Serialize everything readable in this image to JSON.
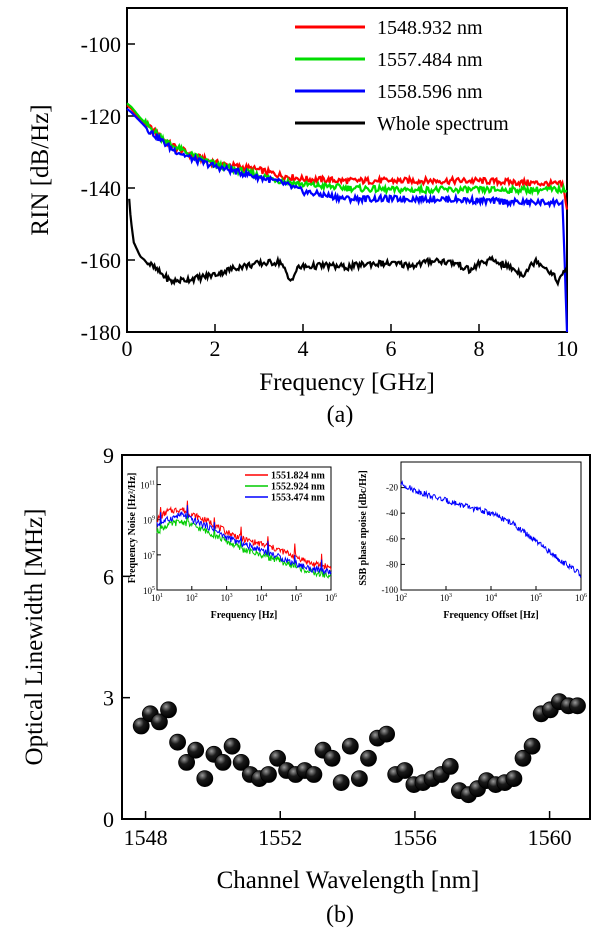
{
  "chart_data": [
    {
      "type": "line",
      "panel_label": "(a)",
      "xlabel": "Frequency [GHz]",
      "ylabel": "RIN [dB/Hz]",
      "xlim": [
        0,
        10
      ],
      "ylim": [
        -180,
        -90
      ],
      "x_ticks": [
        0,
        2,
        4,
        6,
        8,
        10
      ],
      "y_ticks": [
        -180,
        -160,
        -140,
        -120,
        -100
      ],
      "legend_position": "top-right",
      "series": [
        {
          "name": "1548.932 nm",
          "color": "#ff0000",
          "x": [
            0,
            0.1,
            0.3,
            0.5,
            0.8,
            1.0,
            1.5,
            2,
            2.5,
            3,
            3.5,
            4,
            5,
            6,
            7,
            8,
            9,
            9.9,
            10
          ],
          "y": [
            -117,
            -118,
            -121,
            -123,
            -126,
            -128,
            -131,
            -133,
            -134,
            -135,
            -136.5,
            -137.5,
            -138,
            -138,
            -138,
            -138,
            -138.5,
            -139,
            -146
          ]
        },
        {
          "name": "1557.484 nm",
          "color": "#00dd00",
          "x": [
            0,
            0.1,
            0.3,
            0.5,
            0.8,
            1.0,
            1.5,
            2,
            2.5,
            3,
            3.5,
            4,
            5,
            6,
            7,
            8,
            9,
            9.9,
            10
          ],
          "y": [
            -116.5,
            -117.5,
            -120.5,
            -123,
            -126,
            -128,
            -131,
            -133.5,
            -135,
            -136.5,
            -138,
            -139,
            -140,
            -140.5,
            -140.5,
            -140.5,
            -140.5,
            -140.5,
            -141
          ]
        },
        {
          "name": "1558.596 nm",
          "color": "#0000ff",
          "x": [
            0,
            0.1,
            0.3,
            0.5,
            0.8,
            1.0,
            1.5,
            2,
            2.5,
            3,
            3.5,
            4,
            5,
            6,
            7,
            8,
            9,
            9.9,
            10
          ],
          "y": [
            -118,
            -119,
            -121.5,
            -124,
            -127,
            -129,
            -132,
            -134,
            -135.5,
            -137,
            -138.5,
            -141,
            -143,
            -143,
            -143,
            -143.5,
            -144,
            -144,
            -180
          ]
        },
        {
          "name": "Whole spectrum",
          "color": "#000000",
          "x": [
            0.05,
            0.08,
            0.15,
            0.3,
            0.5,
            0.8,
            1.0,
            1.3,
            1.6,
            2.0,
            2.5,
            3.0,
            3.5,
            3.7,
            3.9,
            4.5,
            5,
            5.5,
            6,
            6.5,
            7,
            7.5,
            7.8,
            8,
            8.3,
            8.7,
            9,
            9.3,
            9.6,
            9.8,
            10
          ],
          "y": [
            -143,
            -148,
            -155,
            -159,
            -161,
            -164,
            -166,
            -165.5,
            -165,
            -164,
            -162,
            -161,
            -160.5,
            -166,
            -162,
            -161.5,
            -162,
            -161,
            -161,
            -161.5,
            -160,
            -161,
            -163,
            -161,
            -160,
            -162,
            -164,
            -160,
            -163,
            -166,
            -162
          ]
        }
      ]
    },
    {
      "type": "scatter",
      "panel_label": "(b)",
      "xlabel": "Channel Wavelength [nm]",
      "ylabel": "Optical Linewidth [MHz]",
      "xlim": [
        1547.3,
        1561.2
      ],
      "ylim": [
        0,
        9
      ],
      "x_ticks": [
        1548,
        1552,
        1556,
        1560
      ],
      "y_ticks": [
        0,
        3,
        6,
        9
      ],
      "color": "#000000",
      "x": [
        1547.87,
        1548.14,
        1548.41,
        1548.68,
        1548.95,
        1549.22,
        1549.49,
        1549.76,
        1550.03,
        1550.3,
        1550.57,
        1550.84,
        1551.11,
        1551.38,
        1551.65,
        1551.92,
        1552.19,
        1552.46,
        1552.73,
        1553.0,
        1553.27,
        1553.54,
        1553.81,
        1554.08,
        1554.35,
        1554.62,
        1554.89,
        1555.16,
        1555.43,
        1555.7,
        1555.97,
        1556.24,
        1556.51,
        1556.78,
        1557.05,
        1557.32,
        1557.59,
        1557.86,
        1558.13,
        1558.4,
        1558.67,
        1558.94,
        1559.21,
        1559.48,
        1559.75,
        1560.02,
        1560.29,
        1560.56,
        1560.83
      ],
      "y": [
        2.3,
        2.6,
        2.4,
        2.7,
        1.9,
        1.4,
        1.7,
        1.0,
        1.6,
        1.4,
        1.8,
        1.4,
        1.1,
        1.0,
        1.1,
        1.5,
        1.2,
        1.1,
        1.2,
        1.1,
        1.7,
        1.5,
        0.9,
        1.8,
        1.0,
        1.5,
        2.0,
        2.1,
        1.1,
        1.2,
        0.85,
        0.9,
        1.0,
        1.1,
        1.3,
        0.7,
        0.6,
        0.75,
        0.95,
        0.85,
        0.9,
        1.0,
        1.5,
        1.8,
        2.6,
        2.7,
        2.9,
        2.8,
        2.8
      ]
    },
    {
      "type": "line",
      "panel": "inset-left",
      "xlabel": "Frequency [Hz]",
      "ylabel": "Frequency Noise [Hz²/Hz]",
      "x_scale": "log",
      "y_scale": "log",
      "xlim": [
        10,
        1000000
      ],
      "ylim": [
        100000,
        1000000000000
      ],
      "x_ticks": [
        10,
        100,
        1000,
        10000,
        100000,
        1000000
      ],
      "y_ticks": [
        100000,
        10000000,
        1000000000,
        100000000000
      ],
      "legend_position": "top-right",
      "series": [
        {
          "name": "1551.824 nm",
          "color": "#ff0000",
          "x": [
            10,
            20,
            50,
            100,
            300,
            1000,
            3000,
            10000,
            30000,
            100000,
            300000,
            1000000
          ],
          "y": [
            1000000000,
            3000000000,
            4000000000,
            2000000000,
            800000000,
            200000000,
            80000000,
            40000000,
            20000000,
            8000000,
            3000000,
            2000000
          ]
        },
        {
          "name": "1552.924 nm",
          "color": "#00cc00",
          "x": [
            10,
            20,
            50,
            100,
            300,
            1000,
            3000,
            10000,
            30000,
            100000,
            300000,
            1000000
          ],
          "y": [
            200000000,
            500000000,
            800000000,
            500000000,
            200000000,
            60000000,
            20000000,
            10000000,
            5000000,
            2000000,
            1000000,
            600000
          ]
        },
        {
          "name": "1553.474 nm",
          "color": "#0000ff",
          "x": [
            10,
            20,
            50,
            100,
            300,
            1000,
            3000,
            10000,
            30000,
            100000,
            300000,
            1000000
          ],
          "y": [
            500000000,
            1000000000,
            2000000000,
            1000000000,
            400000000,
            100000000,
            40000000,
            20000000,
            8000000,
            3000000,
            1500000,
            1000000
          ]
        }
      ]
    },
    {
      "type": "line",
      "panel": "inset-right",
      "xlabel": "Frequency Offset [Hz]",
      "ylabel": "SSB phase npoise [dBc/Hz]",
      "x_scale": "log",
      "xlim": [
        100,
        1000000
      ],
      "ylim": [
        -100,
        0
      ],
      "x_ticks": [
        100,
        1000,
        10000,
        100000,
        1000000
      ],
      "y_ticks": [
        -100,
        -80,
        -60,
        -40,
        -20
      ],
      "series": [
        {
          "color": "#0000ff",
          "x": [
            100,
            200,
            500,
            1000,
            3000,
            10000,
            30000,
            100000,
            300000,
            1000000
          ],
          "y": [
            -17,
            -22,
            -27,
            -30,
            -35,
            -40,
            -48,
            -62,
            -75,
            -88
          ]
        }
      ]
    }
  ]
}
